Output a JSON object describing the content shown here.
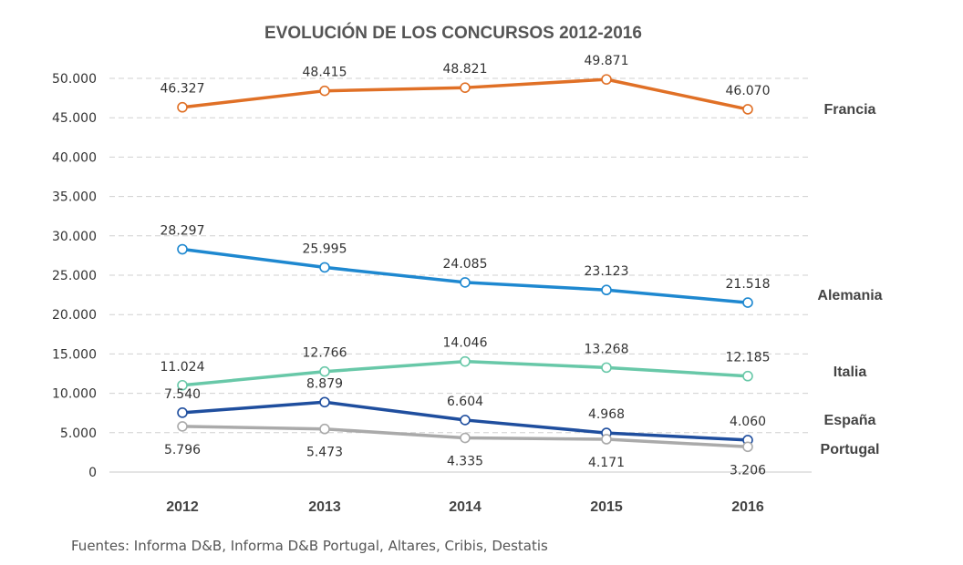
{
  "chart_data": {
    "type": "line",
    "title": "EVOLUCIÓN DE LOS CONCURSOS 2012-2016",
    "categories": [
      "2012",
      "2013",
      "2014",
      "2015",
      "2016"
    ],
    "ylim": [
      0,
      50000
    ],
    "yticks": [
      0,
      5000,
      10000,
      15000,
      20000,
      25000,
      30000,
      35000,
      40000,
      45000,
      50000
    ],
    "ytick_labels": [
      "0",
      "5.000",
      "10.000",
      "15.000",
      "20.000",
      "25.000",
      "30.000",
      "35.000",
      "40.000",
      "45.000",
      "50.000"
    ],
    "grid": true,
    "legend": "right (labels at line ends)",
    "series": [
      {
        "name": "Francia",
        "color": "#E07026",
        "values": [
          46327,
          48415,
          48821,
          49871,
          46070
        ],
        "labels": [
          "46.327",
          "48.415",
          "48.821",
          "49.871",
          "46.070"
        ],
        "label_position": "above"
      },
      {
        "name": "Alemania",
        "color": "#1E88D0",
        "values": [
          28297,
          25995,
          24085,
          23123,
          21518
        ],
        "labels": [
          "28.297",
          "25.995",
          "24.085",
          "23.123",
          "21.518"
        ],
        "label_position": "above"
      },
      {
        "name": "Italia",
        "color": "#68C8A8",
        "values": [
          11024,
          12766,
          14046,
          13268,
          12185
        ],
        "labels": [
          "11.024",
          "12.766",
          "14.046",
          "13.268",
          "12.185"
        ],
        "label_position": "above"
      },
      {
        "name": "España",
        "color": "#1F4E9E",
        "values": [
          7540,
          8879,
          6604,
          4968,
          4060
        ],
        "labels": [
          "7.540",
          "8.879",
          "6.604",
          "4.968",
          "4.060"
        ],
        "label_position": "above"
      },
      {
        "name": "Portugal",
        "color": "#AAAAAA",
        "values": [
          5796,
          5473,
          4335,
          4171,
          3206
        ],
        "labels": [
          "5.796",
          "5.473",
          "4.335",
          "4.171",
          "3.206"
        ],
        "label_position": "below"
      }
    ]
  },
  "source_note": "Fuentes: Informa D&B, Informa D&B Portugal, Altares, Cribis, Destatis"
}
